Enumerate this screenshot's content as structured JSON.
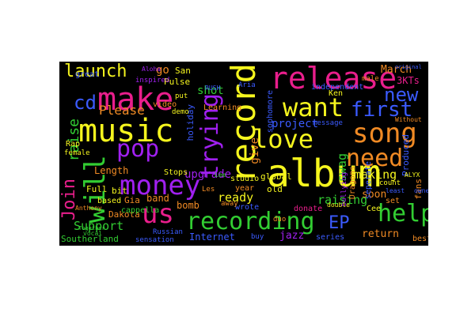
{
  "cloud": {
    "words": [
      {
        "text": "release",
        "color": "#e91e8c"
      },
      {
        "text": "record",
        "color": "#f5f51e"
      },
      {
        "text": "album",
        "color": "#f5f51e"
      },
      {
        "text": "make",
        "color": "#e91e8c"
      },
      {
        "text": "music",
        "color": "#f5f51e"
      },
      {
        "text": "want",
        "color": "#f5f51e"
      },
      {
        "text": "song",
        "color": "#f08a24"
      },
      {
        "text": "money",
        "color": "#a020f0"
      },
      {
        "text": "recording",
        "color": "#32cd32"
      },
      {
        "text": "love",
        "color": "#f5f51e"
      },
      {
        "text": "first",
        "color": "#3b5bff"
      },
      {
        "text": "need",
        "color": "#f08a24"
      },
      {
        "text": "pop",
        "color": "#a020f0"
      },
      {
        "text": "launch",
        "color": "#f5f51e"
      },
      {
        "text": "us",
        "color": "#e91e8c"
      },
      {
        "text": "help",
        "color": "#32cd32"
      },
      {
        "text": "Join",
        "color": "#e91e8c"
      },
      {
        "text": "will",
        "color": "#32cd32"
      },
      {
        "text": "trying",
        "color": "#a020f0"
      },
      {
        "text": "cd",
        "color": "#3b5bff"
      },
      {
        "text": "new",
        "color": "#3b5bff"
      },
      {
        "text": "EP",
        "color": "#3b5bff"
      },
      {
        "text": "Please",
        "color": "#f08a24"
      },
      {
        "text": "raise",
        "color": "#32cd32"
      },
      {
        "text": "project",
        "color": "#3b5bff"
      },
      {
        "text": "raising",
        "color": "#32cd32"
      },
      {
        "text": "Support",
        "color": "#32cd32"
      },
      {
        "text": "making",
        "color": "#f5f51e"
      },
      {
        "text": "ready",
        "color": "#f5f51e"
      },
      {
        "text": "shot",
        "color": "#32cd32"
      },
      {
        "text": "swag",
        "color": "#32cd32"
      },
      {
        "text": "March",
        "color": "#f08a24"
      },
      {
        "text": "3KTs",
        "color": "#e91e8c"
      },
      {
        "text": "go",
        "color": "#f08a24"
      },
      {
        "text": "give",
        "color": "#f08a24"
      },
      {
        "text": "upgrade",
        "color": "#a020f0"
      },
      {
        "text": "jazz",
        "color": "#a020f0"
      },
      {
        "text": "return",
        "color": "#f08a24"
      },
      {
        "text": "soon",
        "color": "#f08a24"
      },
      {
        "text": "Internet",
        "color": "#3b5bff"
      },
      {
        "text": "bomb",
        "color": "#f08a24"
      },
      {
        "text": "Length",
        "color": "#f08a24"
      },
      {
        "text": "band",
        "color": "#f08a24"
      },
      {
        "text": "Dakota",
        "color": "#f08a24"
      },
      {
        "text": "Southerland",
        "color": "#32cd32"
      },
      {
        "text": "Pulse",
        "color": "#f5f51e"
      },
      {
        "text": "San",
        "color": "#f5f51e"
      },
      {
        "text": "holiday",
        "color": "#3b5bff"
      },
      {
        "text": "Full",
        "color": "#f5f51e"
      },
      {
        "text": "bit",
        "color": "#f5f51e"
      },
      {
        "text": "Gia",
        "color": "#f08a24"
      },
      {
        "text": "global",
        "color": "#f5f51e"
      },
      {
        "text": "old",
        "color": "#f5f51e"
      },
      {
        "text": "fans",
        "color": "#f08a24"
      },
      {
        "text": "independent",
        "color": "#3b5bff"
      },
      {
        "text": "Produced",
        "color": "#3b5bff"
      },
      {
        "text": "Learning",
        "color": "#f08a24"
      },
      {
        "text": "studio",
        "color": "#f5f51e"
      },
      {
        "text": "year",
        "color": "#f08a24"
      },
      {
        "text": "series",
        "color": "#3b5bff"
      },
      {
        "text": "best",
        "color": "#f08a24"
      },
      {
        "text": "wrote",
        "color": "#3b5bff"
      },
      {
        "text": "donate",
        "color": "#e91e8c"
      },
      {
        "text": "Stops",
        "color": "#f5f51e"
      },
      {
        "text": "based",
        "color": "#f5f51e"
      },
      {
        "text": "cappella",
        "color": "#32cd32"
      },
      {
        "text": "Rap",
        "color": "#f5f51e"
      },
      {
        "text": "great",
        "color": "#3b5bff"
      },
      {
        "text": "video",
        "color": "#f08a24"
      },
      {
        "text": "sensation",
        "color": "#3b5bff"
      },
      {
        "text": "Dragons",
        "color": "#f08a24"
      },
      {
        "text": "Cee",
        "color": "#f5f51e"
      },
      {
        "text": "set",
        "color": "#f08a24"
      },
      {
        "text": "seperate",
        "color": "#3b5bff"
      },
      {
        "text": "away",
        "color": "#f08a24"
      },
      {
        "text": "sophomore",
        "color": "#3b5bff"
      },
      {
        "text": "Ken",
        "color": "#f5f51e"
      },
      {
        "text": "male",
        "color": "#f08a24"
      },
      {
        "text": "put",
        "color": "#f5f51e"
      },
      {
        "text": "demo",
        "color": "#f5f51e"
      },
      {
        "text": "Aria",
        "color": "#3b5bff"
      },
      {
        "text": "bullying",
        "color": "#a020f0"
      },
      {
        "text": "inspired",
        "color": "#a020f0"
      },
      {
        "text": "Russian",
        "color": "#3b5bff"
      },
      {
        "text": "buy",
        "color": "#3b5bff"
      },
      {
        "text": "duo",
        "color": "#f08a24"
      },
      {
        "text": "female",
        "color": "#f5f51e"
      },
      {
        "text": "Les",
        "color": "#f08a24"
      },
      {
        "text": "count",
        "color": "#f5f51e"
      },
      {
        "text": "message",
        "color": "#3b5bff"
      },
      {
        "text": "double",
        "color": "#f5f51e"
      },
      {
        "text": "Without",
        "color": "#f08a24"
      },
      {
        "text": "ALYX",
        "color": "#f5f51e"
      },
      {
        "text": "least",
        "color": "#3b5bff"
      },
      {
        "text": "owned",
        "color": "#3b5bff"
      },
      {
        "text": "Anthony",
        "color": "#f08a24"
      },
      {
        "text": "one",
        "color": "#32cd32"
      },
      {
        "text": "Lee",
        "color": "#32cd32"
      },
      {
        "text": "Aloha",
        "color": "#a020f0"
      },
      {
        "text": "RUSH",
        "color": "#3b5bff"
      },
      {
        "text": "vocal",
        "color": "#32cd32"
      },
      {
        "text": "Together",
        "color": "#32cd32"
      },
      {
        "text": "original",
        "color": "#3b5bff"
      }
    ]
  }
}
